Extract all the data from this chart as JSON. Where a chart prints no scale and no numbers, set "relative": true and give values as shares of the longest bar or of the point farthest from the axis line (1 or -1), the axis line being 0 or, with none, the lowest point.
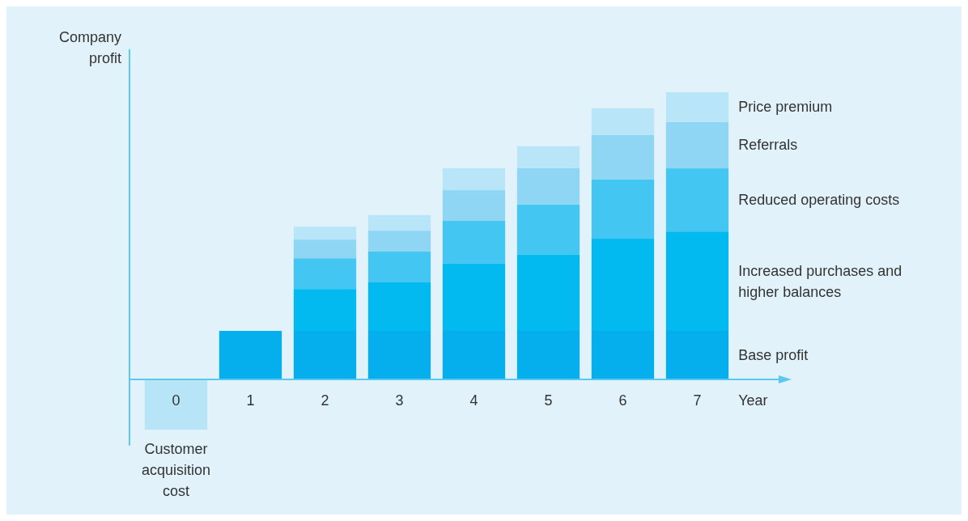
{
  "chart_data": {
    "type": "bar",
    "stacked": true,
    "relative": true,
    "ylabel": "Company profit",
    "xlabel": "Year",
    "categories": [
      "0",
      "1",
      "2",
      "3",
      "4",
      "5",
      "6",
      "7"
    ],
    "series": [
      {
        "name": "Customer acquisition cost",
        "color": "#b8e4f8",
        "values": [
          -0.175,
          null,
          null,
          null,
          null,
          null,
          null,
          null
        ]
      },
      {
        "name": "Base profit",
        "color": "#05aeed",
        "values": [
          null,
          0.169,
          0.169,
          0.169,
          0.169,
          0.169,
          0.169,
          0.169
        ]
      },
      {
        "name": "Increased purchases and higher balances",
        "color": "#03baf0",
        "values": [
          null,
          null,
          0.146,
          0.169,
          0.234,
          0.265,
          0.321,
          0.346
        ]
      },
      {
        "name": "Reduced operating costs",
        "color": "#44c6f2",
        "values": [
          null,
          null,
          0.107,
          0.107,
          0.149,
          0.175,
          0.206,
          0.22
        ]
      },
      {
        "name": "Referrals",
        "color": "#8fd6f5",
        "values": [
          null,
          null,
          0.065,
          0.073,
          0.107,
          0.127,
          0.155,
          0.161
        ]
      },
      {
        "name": "Price premium",
        "color": "#b9e5f8",
        "values": [
          null,
          null,
          0.045,
          0.054,
          0.076,
          0.076,
          0.093,
          0.104
        ]
      }
    ]
  }
}
